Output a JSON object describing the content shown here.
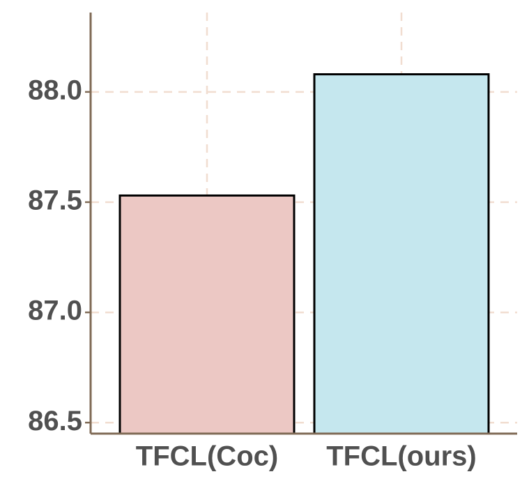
{
  "chart_data": {
    "type": "bar",
    "categories": [
      "TFCL(Coc)",
      "TFCL(ours)"
    ],
    "values": [
      87.53,
      88.08
    ],
    "colors": [
      "#ecc8c4",
      "#c5e7ee"
    ],
    "ylim": [
      86.45,
      88.36
    ],
    "yticks": [
      86.5,
      {
        "value": 87,
        "label": "87.0"
      },
      87.5,
      {
        "value": 88,
        "label": "88.0"
      }
    ],
    "grid": true
  }
}
